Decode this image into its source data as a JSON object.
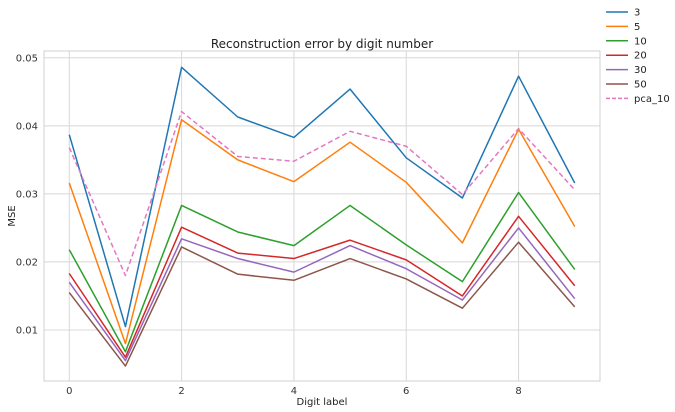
{
  "chart_data": {
    "type": "line",
    "title": "Reconstruction error by digit number",
    "xlabel": "Digit label",
    "ylabel": "MSE",
    "x": [
      0,
      1,
      2,
      3,
      4,
      5,
      6,
      7,
      8,
      9
    ],
    "xticks": [
      "0",
      "2",
      "4",
      "6",
      "8"
    ],
    "yticks": [
      "0.01",
      "0.02",
      "0.03",
      "0.04",
      "0.05"
    ],
    "xlim": [
      -0.45,
      9.45
    ],
    "ylim": [
      0.0025,
      0.051
    ],
    "grid": true,
    "legend_position": "outside-top-right",
    "series": [
      {
        "name": "3",
        "color": "#1f77b4",
        "dash": false,
        "values": [
          0.0387,
          0.0105,
          0.0486,
          0.0413,
          0.0383,
          0.0454,
          0.0353,
          0.0294,
          0.0473,
          0.0316
        ]
      },
      {
        "name": "5",
        "color": "#ff7f0e",
        "dash": false,
        "values": [
          0.0316,
          0.008,
          0.0409,
          0.035,
          0.0318,
          0.0376,
          0.0317,
          0.0228,
          0.0395,
          0.0252
        ]
      },
      {
        "name": "10",
        "color": "#2ca02c",
        "dash": false,
        "values": [
          0.0218,
          0.0068,
          0.0283,
          0.0244,
          0.0224,
          0.0283,
          0.0225,
          0.0171,
          0.0302,
          0.0189
        ]
      },
      {
        "name": "20",
        "color": "#d62728",
        "dash": false,
        "values": [
          0.0183,
          0.006,
          0.0251,
          0.0213,
          0.0205,
          0.0232,
          0.0203,
          0.015,
          0.0267,
          0.0165
        ]
      },
      {
        "name": "30",
        "color": "#9467bd",
        "dash": false,
        "values": [
          0.017,
          0.0055,
          0.0234,
          0.0205,
          0.0185,
          0.0224,
          0.019,
          0.0144,
          0.025,
          0.0146
        ]
      },
      {
        "name": "50",
        "color": "#8c564b",
        "dash": false,
        "values": [
          0.0155,
          0.0047,
          0.0222,
          0.0182,
          0.0173,
          0.0205,
          0.0175,
          0.0132,
          0.0229,
          0.0134
        ]
      },
      {
        "name": "pca_10",
        "color": "#e377c2",
        "dash": true,
        "values": [
          0.0368,
          0.018,
          0.0421,
          0.0355,
          0.0348,
          0.0392,
          0.037,
          0.0299,
          0.0396,
          0.0306
        ]
      }
    ]
  }
}
